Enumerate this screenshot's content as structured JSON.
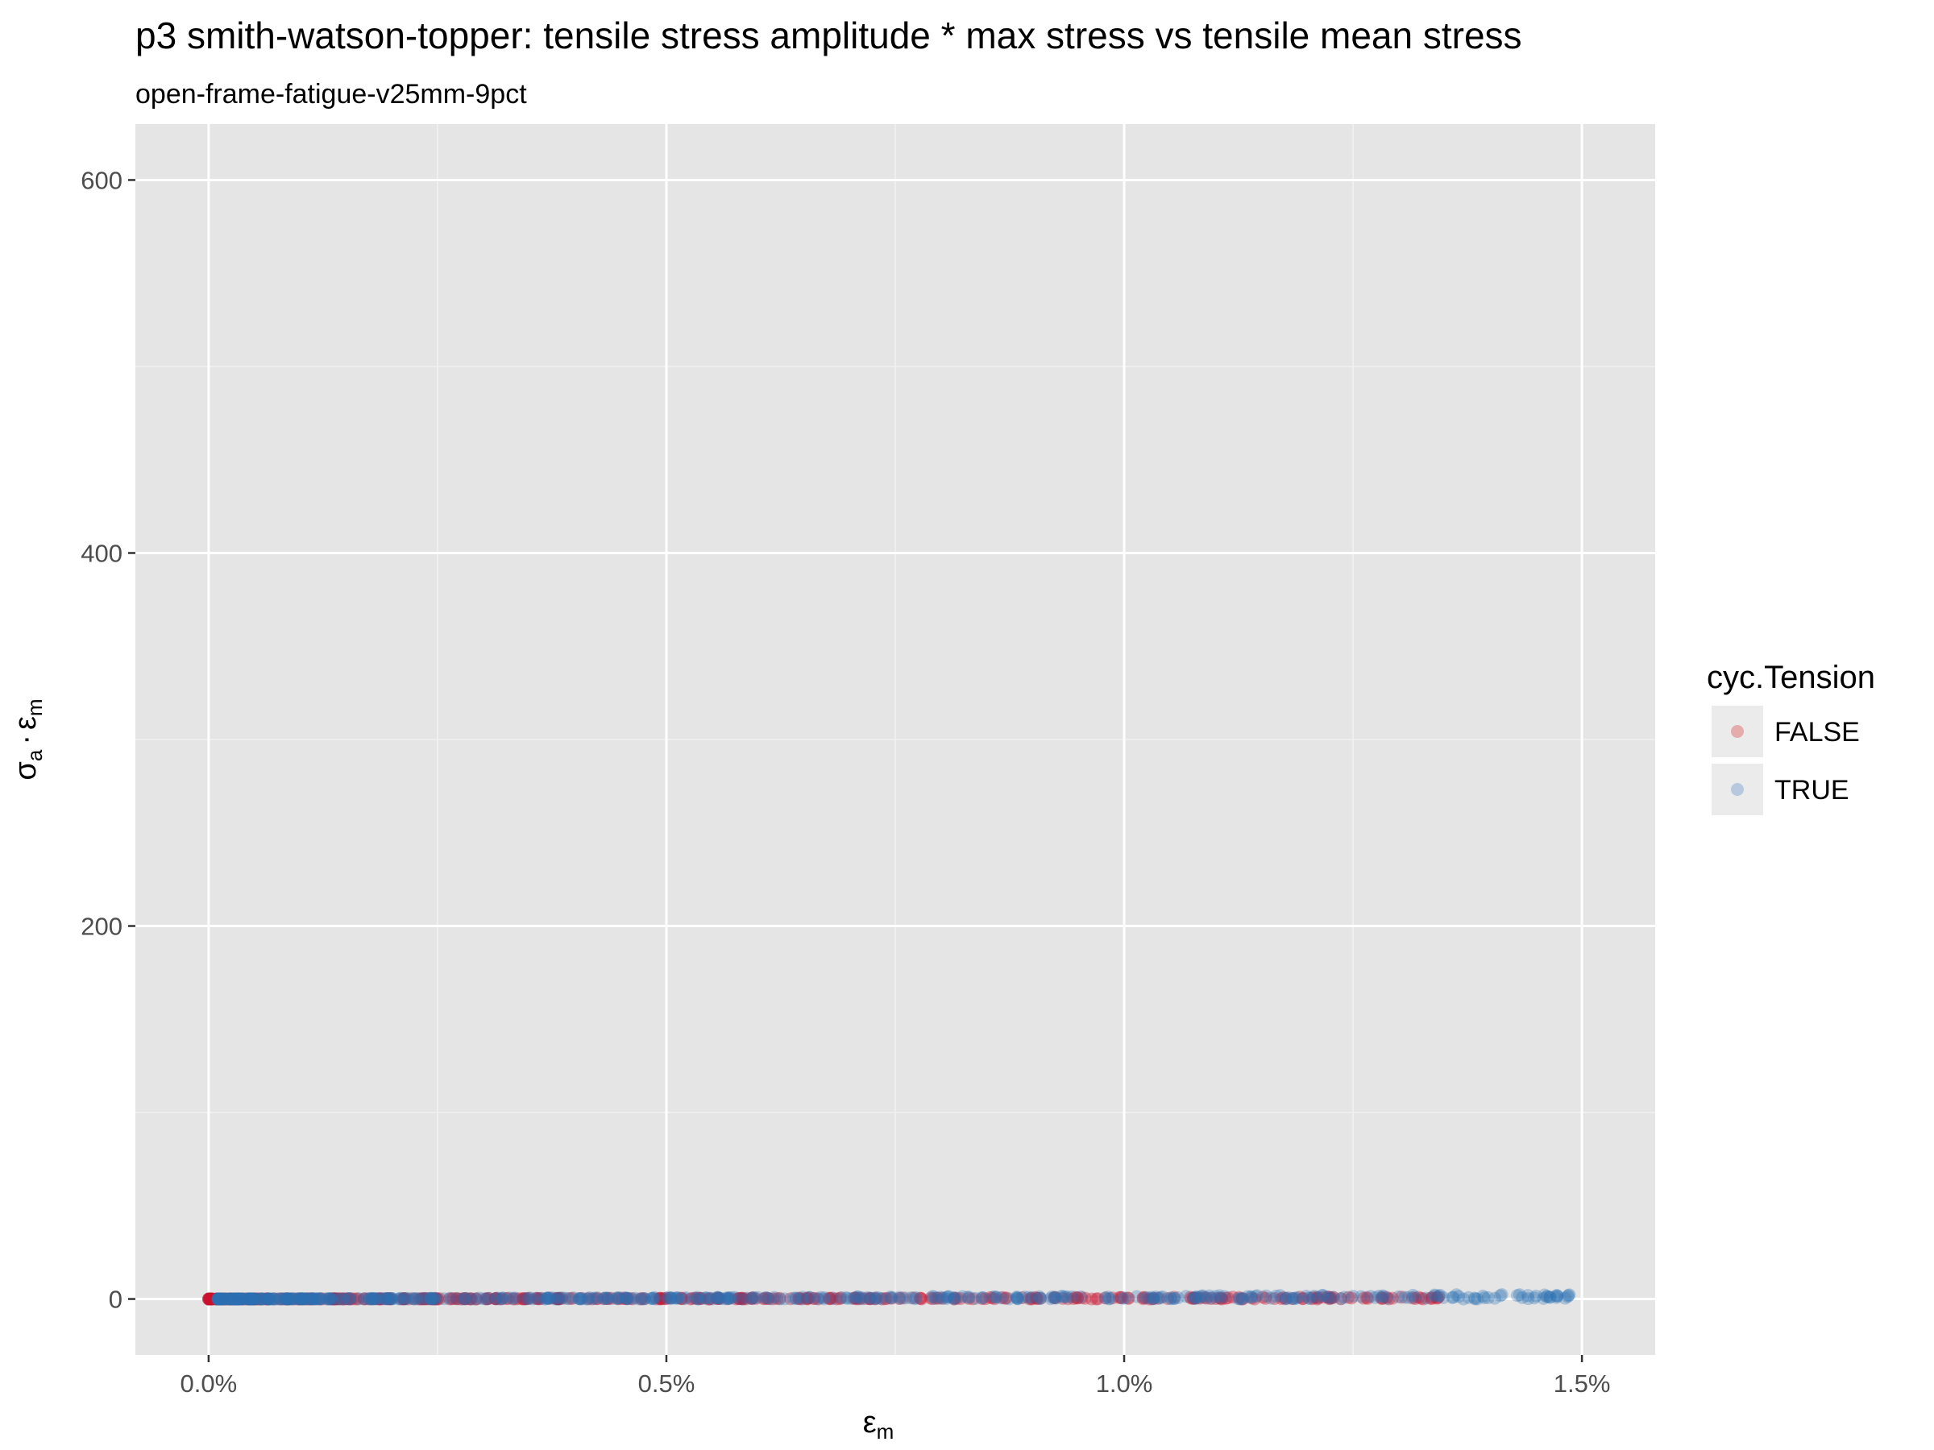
{
  "title": "p3 smith-watson-topper: tensile stress amplitude * max stress vs tensile mean stress",
  "subtitle": "open-frame-fatigue-v25mm-9pct",
  "chart_data": {
    "type": "scatter",
    "title": "p3 smith-watson-topper: tensile stress amplitude * max stress vs tensile mean stress",
    "subtitle": "open-frame-fatigue-v25mm-9pct",
    "xlabel": {
      "main": "ε",
      "sub": "m"
    },
    "ylabel": {
      "sigma": "σ",
      "sigma_sub": "a",
      "dot": "·",
      "eps": "ε",
      "eps_sub": "m"
    },
    "xlim": [
      -0.0008,
      0.0158
    ],
    "ylim": [
      -30,
      630
    ],
    "x_ticks": [
      0,
      0.005,
      0.01,
      0.015
    ],
    "x_tick_labels": [
      "0.0%",
      "0.5%",
      "1.0%",
      "1.5%"
    ],
    "y_ticks": [
      0,
      200,
      400,
      600
    ],
    "y_tick_labels": [
      "0",
      "200",
      "400",
      "600"
    ],
    "grid": true,
    "legend": {
      "title": "cyc.Tension",
      "position": "right",
      "entries": [
        {
          "label": "FALSE",
          "color": "#d7191c"
        },
        {
          "label": "TRUE",
          "color": "#3a7bbf"
        }
      ]
    },
    "series": [
      {
        "name": "FALSE",
        "color": "#c8102e",
        "opacity": 0.35,
        "x_range": [
          0.0,
          0.01345
        ],
        "y_range": [
          0,
          1.2
        ]
      },
      {
        "name": "TRUE",
        "color": "#2c6fb3",
        "opacity": 0.3,
        "x_range": [
          0.0001,
          0.0149
        ],
        "y_range": [
          0,
          2.5
        ]
      }
    ]
  }
}
